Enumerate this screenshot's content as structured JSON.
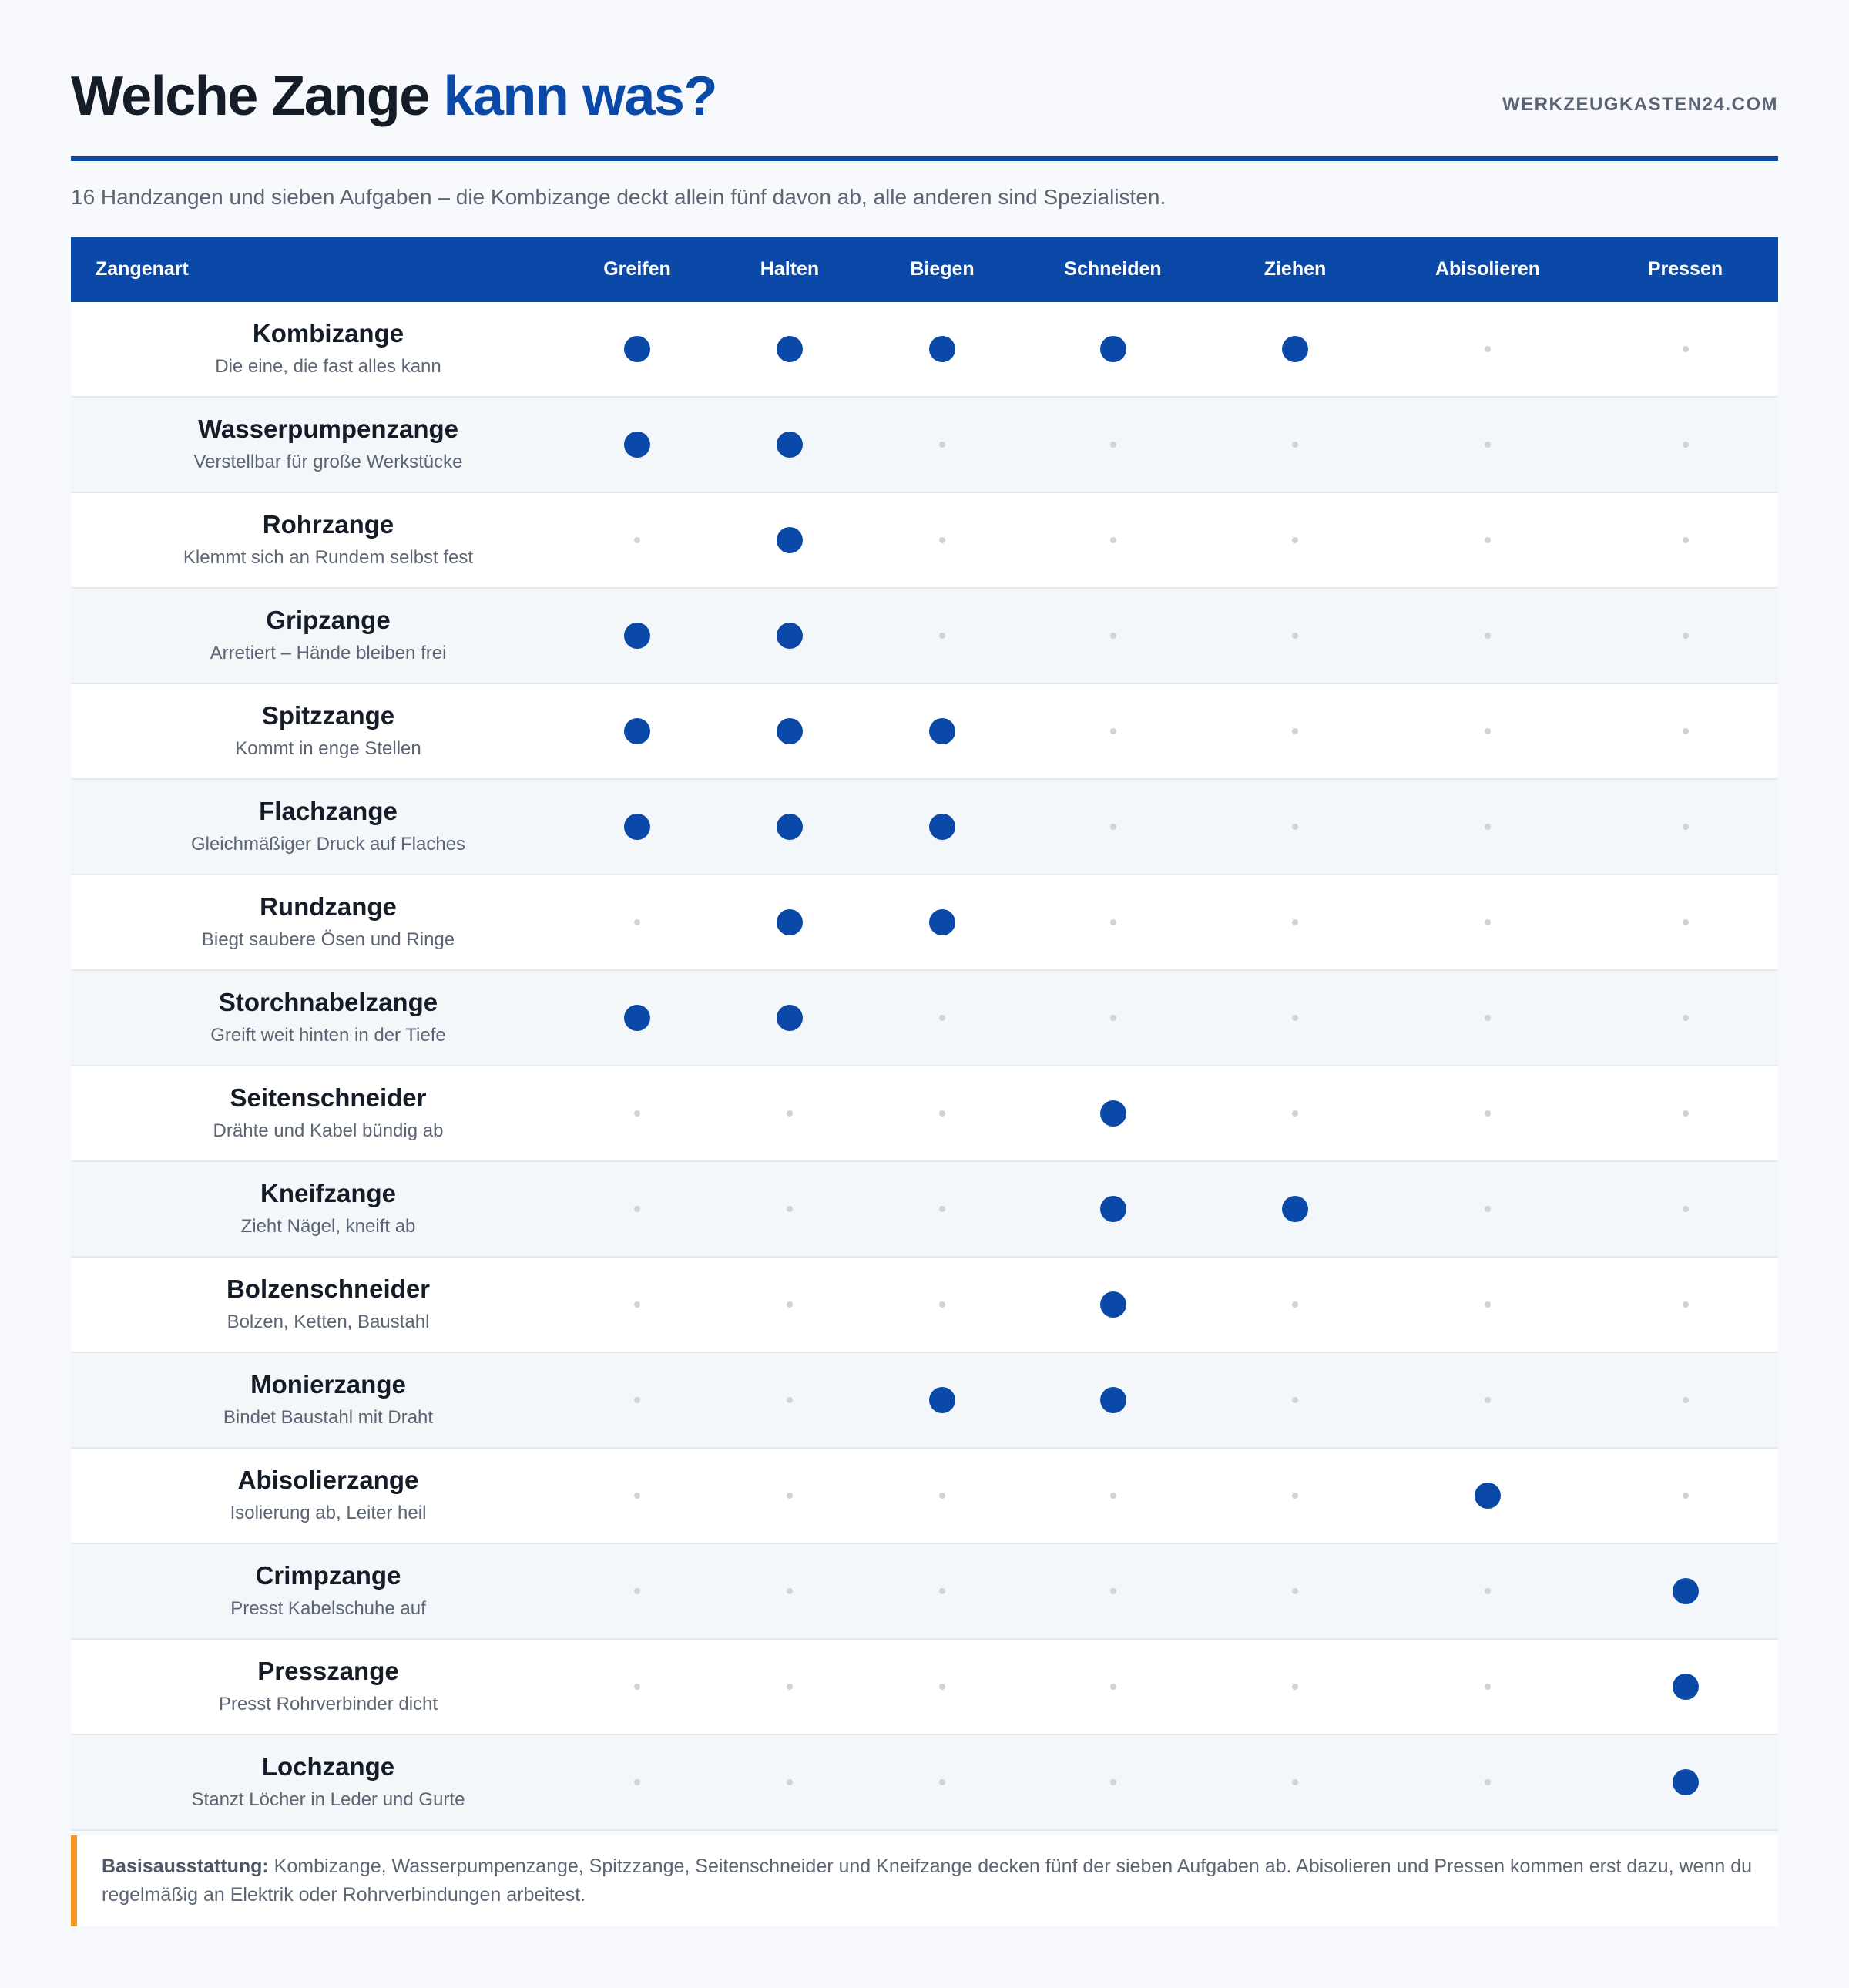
{
  "header": {
    "title_main": "Welche Zange ",
    "title_accent": "kann was?",
    "brand": "WERKZEUGKASTEN24.COM"
  },
  "subtitle": "16 Handzangen und sieben Aufgaben – die Kombizange deckt allein fünf davon ab, alle anderen sind Spezialisten.",
  "table": {
    "columns": [
      "Zangenart",
      "Greifen",
      "Halten",
      "Biegen",
      "Schneiden",
      "Ziehen",
      "Abisolieren",
      "Pressen"
    ],
    "rows": [
      {
        "name": "Kombizange",
        "desc": "Die eine, die fast alles kann",
        "marks": [
          1,
          1,
          1,
          1,
          1,
          0,
          0
        ]
      },
      {
        "name": "Wasserpumpenzange",
        "desc": "Verstellbar für große Werkstücke",
        "marks": [
          1,
          1,
          0,
          0,
          0,
          0,
          0
        ]
      },
      {
        "name": "Rohrzange",
        "desc": "Klemmt sich an Rundem selbst fest",
        "marks": [
          0,
          1,
          0,
          0,
          0,
          0,
          0
        ]
      },
      {
        "name": "Gripzange",
        "desc": "Arretiert – Hände bleiben frei",
        "marks": [
          1,
          1,
          0,
          0,
          0,
          0,
          0
        ]
      },
      {
        "name": "Spitzzange",
        "desc": "Kommt in enge Stellen",
        "marks": [
          1,
          1,
          1,
          0,
          0,
          0,
          0
        ]
      },
      {
        "name": "Flachzange",
        "desc": "Gleichmäßiger Druck auf Flaches",
        "marks": [
          1,
          1,
          1,
          0,
          0,
          0,
          0
        ]
      },
      {
        "name": "Rundzange",
        "desc": "Biegt saubere Ösen und Ringe",
        "marks": [
          0,
          1,
          1,
          0,
          0,
          0,
          0
        ]
      },
      {
        "name": "Storchnabelzange",
        "desc": "Greift weit hinten in der Tiefe",
        "marks": [
          1,
          1,
          0,
          0,
          0,
          0,
          0
        ]
      },
      {
        "name": "Seitenschneider",
        "desc": "Drähte und Kabel bündig ab",
        "marks": [
          0,
          0,
          0,
          1,
          0,
          0,
          0
        ]
      },
      {
        "name": "Kneifzange",
        "desc": "Zieht Nägel, kneift ab",
        "marks": [
          0,
          0,
          0,
          1,
          1,
          0,
          0
        ]
      },
      {
        "name": "Bolzenschneider",
        "desc": "Bolzen, Ketten, Baustahl",
        "marks": [
          0,
          0,
          0,
          1,
          0,
          0,
          0
        ]
      },
      {
        "name": "Monierzange",
        "desc": "Bindet Baustahl mit Draht",
        "marks": [
          0,
          0,
          1,
          1,
          0,
          0,
          0
        ]
      },
      {
        "name": "Abisolierzange",
        "desc": "Isolierung ab, Leiter heil",
        "marks": [
          0,
          0,
          0,
          0,
          0,
          1,
          0
        ]
      },
      {
        "name": "Crimpzange",
        "desc": "Presst Kabelschuhe auf",
        "marks": [
          0,
          0,
          0,
          0,
          0,
          0,
          1
        ]
      },
      {
        "name": "Presszange",
        "desc": "Presst Rohrverbinder dicht",
        "marks": [
          0,
          0,
          0,
          0,
          0,
          0,
          1
        ]
      },
      {
        "name": "Lochzange",
        "desc": "Stanzt Löcher in Leder und Gurte",
        "marks": [
          0,
          0,
          0,
          0,
          0,
          0,
          1
        ]
      }
    ]
  },
  "note": {
    "label": "Basisausstattung:",
    "text": " Kombizange, Wasserpumpenzange, Spitzzange, Seitenschneider und Kneifzange decken fünf der sieben Aufgaben ab. Abisolieren und Pressen kommen erst dazu, wenn du regelmäßig an Elektrik oder Rohrverbindungen arbeitest."
  },
  "colors": {
    "accent": "#0a49a8",
    "dot_active": "#0a49a8",
    "dot_inactive": "#cdd3db",
    "note_border": "#f5961e"
  }
}
